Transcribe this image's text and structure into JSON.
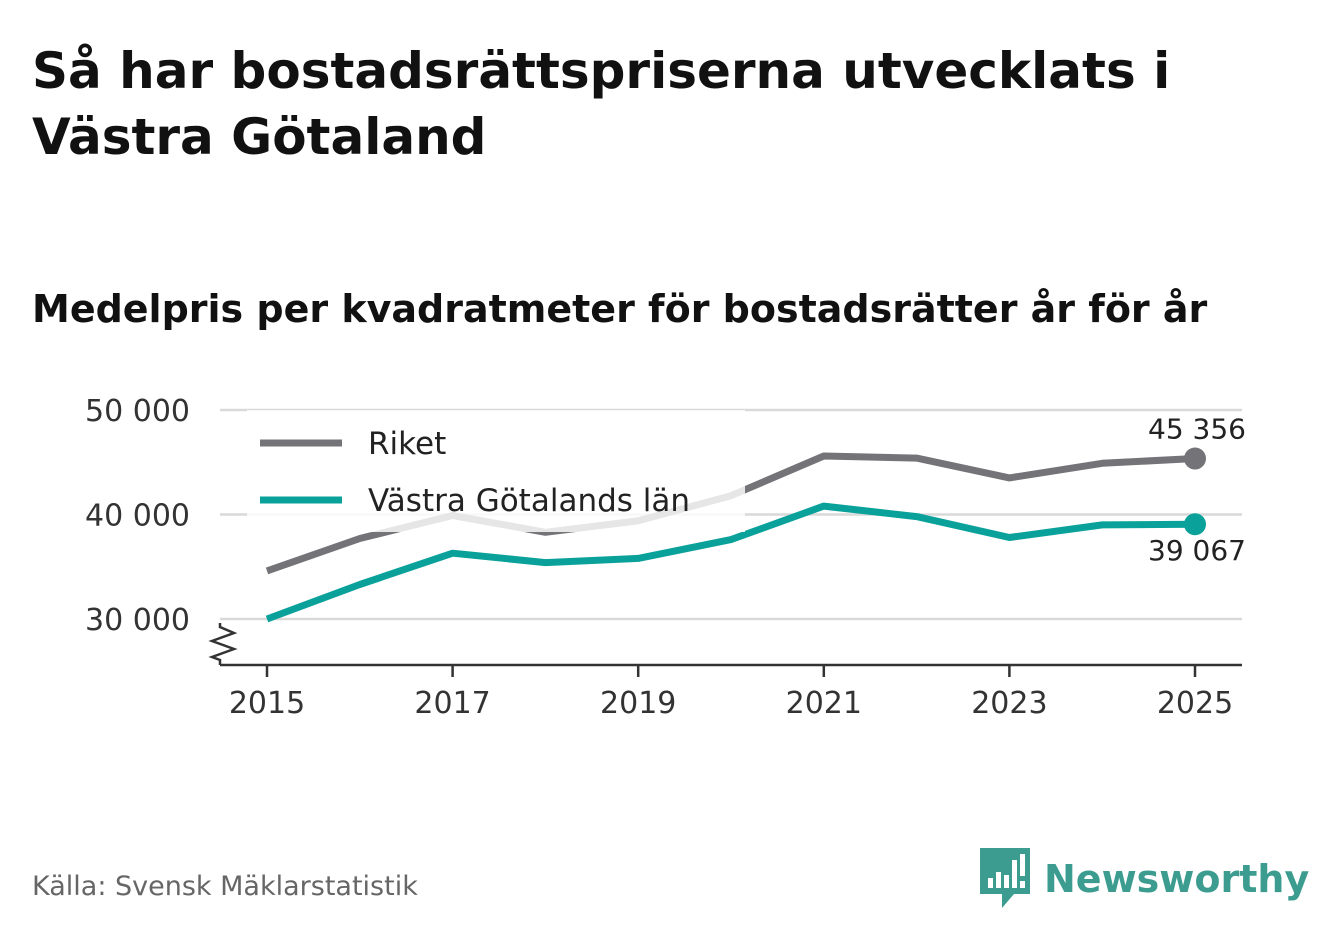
{
  "title": "Så har bostadsrättspriserna utvecklats i Västra Götaland",
  "subtitle": "Medelpris per kvadratmeter för bostadsrätter år för år",
  "source": "Källa: Svensk Mäklarstatistik",
  "brand": {
    "name": "Newsworthy",
    "color": "#3d9c90"
  },
  "chart_data": {
    "type": "line",
    "title": "Så har bostadsrättspriserna utvecklats i Västra Götaland",
    "subtitle": "Medelpris per kvadratmeter för bostadsrätter år för år",
    "xlabel": "",
    "ylabel": "",
    "x": [
      2015,
      2016,
      2017,
      2018,
      2019,
      2020,
      2021,
      2022,
      2023,
      2024,
      2025
    ],
    "x_ticks": [
      "2015",
      "2017",
      "2019",
      "2021",
      "2023",
      "2025"
    ],
    "y_ticks": [
      "30 000",
      "40 000",
      "50 000"
    ],
    "ylim": [
      26000,
      50000
    ],
    "y_broken_axis": true,
    "grid": true,
    "legend_position": "top-left",
    "series": [
      {
        "name": "Riket",
        "color": "#737378",
        "values": [
          34600,
          37700,
          39900,
          38300,
          39400,
          41800,
          45600,
          45400,
          43500,
          44900,
          45356
        ],
        "end_label": "45 356"
      },
      {
        "name": "Västra Götalands län",
        "color": "#0aa19a",
        "values": [
          30000,
          33300,
          36300,
          35400,
          35800,
          37600,
          40800,
          39800,
          37800,
          39000,
          39067
        ],
        "end_label": "39 067"
      }
    ]
  }
}
